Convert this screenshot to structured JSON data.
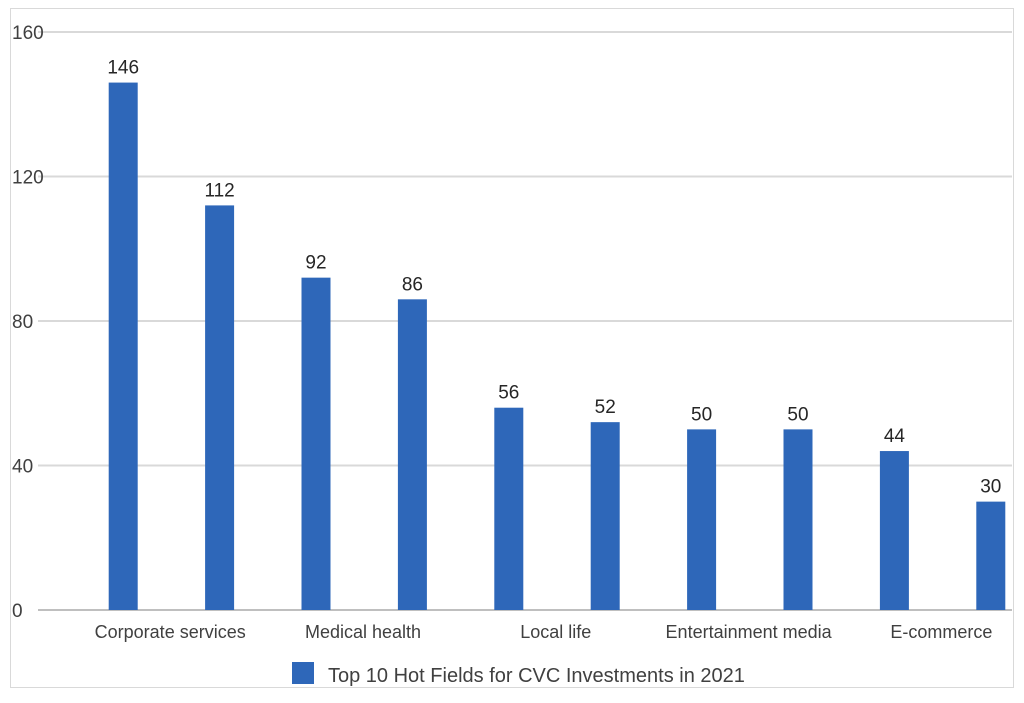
{
  "chart_data": {
    "type": "bar",
    "categories": [
      "Corporate services",
      "",
      "Medical health",
      "",
      "Local life",
      "",
      "Entertainment media",
      "",
      "E-commerce",
      ""
    ],
    "series": [
      {
        "name": "Top 10 Hot Fields for CVC Investments in 2021",
        "values": [
          146,
          112,
          92,
          86,
          56,
          52,
          50,
          50,
          44,
          30
        ]
      }
    ],
    "ylim": [
      0,
      160
    ],
    "yticks": [
      0,
      40,
      80,
      120,
      160
    ],
    "grid": true,
    "legend_position": "bottom",
    "colors": {
      "bar": "#2e67b9",
      "grid": "#d9d9d9",
      "axis": "#bfbfbf"
    }
  }
}
